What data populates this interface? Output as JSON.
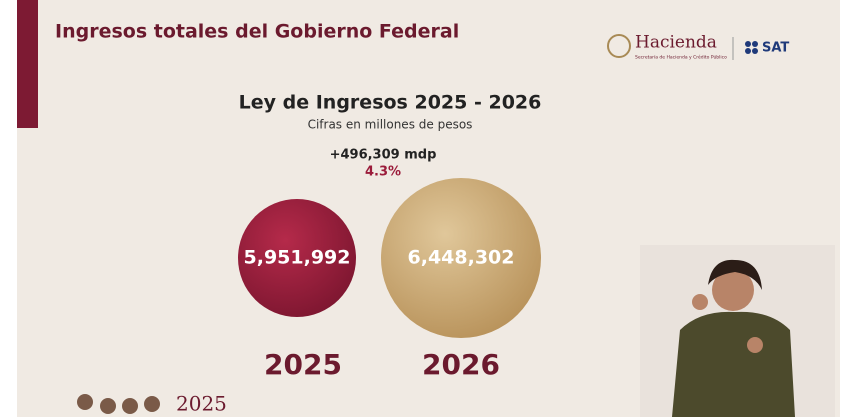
{
  "header": {
    "title": "Ingresos totales del Gobierno Federal"
  },
  "logos": {
    "hacienda": "Hacienda",
    "hacienda_sub": "Secretaría de Hacienda y Crédito Público",
    "sat": "SAT"
  },
  "slide": {
    "title": "Ley de Ingresos 2025 - 2026",
    "subtitle": "Cifras en millones de pesos",
    "difference": "+496,309 mdp",
    "growth": "4.3%",
    "items": [
      {
        "value": "5,951,992",
        "year": "2025"
      },
      {
        "value": "6,448,302",
        "year": "2026"
      }
    ]
  },
  "footer": {
    "logo_year": "2025"
  }
}
